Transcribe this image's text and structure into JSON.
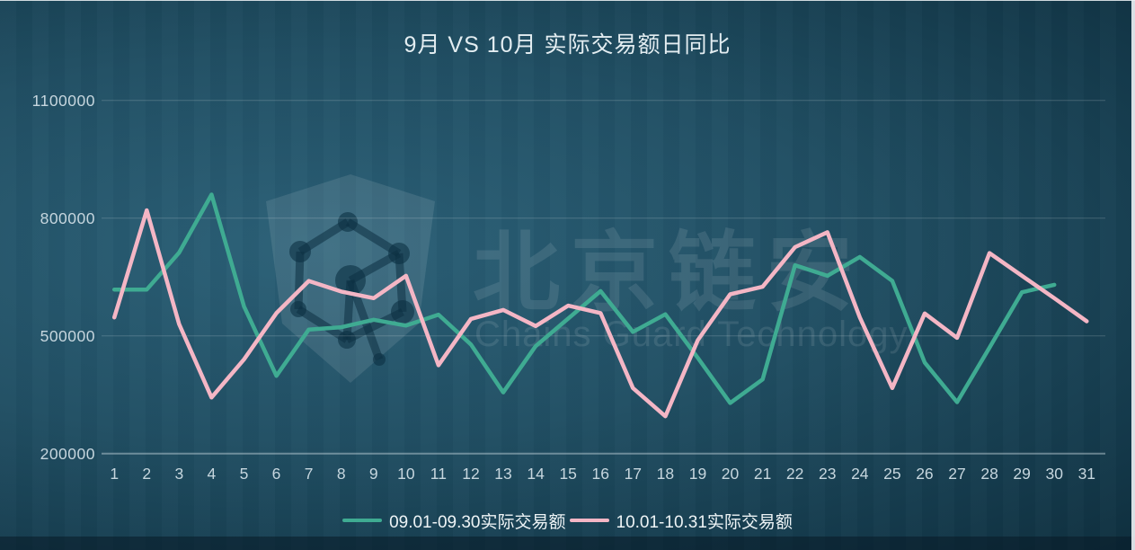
{
  "title": "9月 VS 10月 实际交易额日同比",
  "watermark": {
    "cn": "北京链安",
    "en": "Chains Guard Technology"
  },
  "colors": {
    "background_center": "#2b6077",
    "background_edge": "#0f303f",
    "series_september": "#3fab92",
    "series_october": "#f4b6c5",
    "gridline": "rgba(255,255,255,0.18)",
    "text": "#e3edf1"
  },
  "chart_data": {
    "type": "line",
    "title": "9月 VS 10月 实际交易额日同比",
    "xlabel": "",
    "ylabel": "",
    "ylim": [
      200000,
      1100000
    ],
    "yticks": [
      200000,
      500000,
      800000,
      1100000
    ],
    "grid": true,
    "legend_position": "bottom",
    "categories": [
      "1",
      "2",
      "3",
      "4",
      "5",
      "6",
      "7",
      "8",
      "9",
      "10",
      "11",
      "12",
      "13",
      "14",
      "15",
      "16",
      "17",
      "18",
      "19",
      "20",
      "21",
      "22",
      "23",
      "24",
      "25",
      "26",
      "27",
      "28",
      "29",
      "30",
      "31"
    ],
    "series": [
      {
        "name": "09.01-09.30实际交易额",
        "color": "#3fab92",
        "values": [
          618000,
          618000,
          712000,
          860000,
          575000,
          398000,
          516000,
          522000,
          541000,
          526000,
          554000,
          478000,
          356000,
          474000,
          544000,
          614000,
          510000,
          555000,
          444000,
          329000,
          389000,
          680000,
          653000,
          701000,
          640000,
          432000,
          331000,
          470000,
          611000,
          630000
        ]
      },
      {
        "name": "10.01-10.31实际交易额",
        "color": "#f4b6c5",
        "values": [
          547000,
          820000,
          530000,
          343000,
          440000,
          558000,
          640000,
          613000,
          596000,
          653000,
          425000,
          543000,
          566000,
          525000,
          577000,
          558000,
          367000,
          295000,
          489000,
          606000,
          625000,
          726000,
          764000,
          547000,
          367000,
          557000,
          495000,
          711000,
          653000,
          596000,
          537000
        ]
      }
    ]
  }
}
